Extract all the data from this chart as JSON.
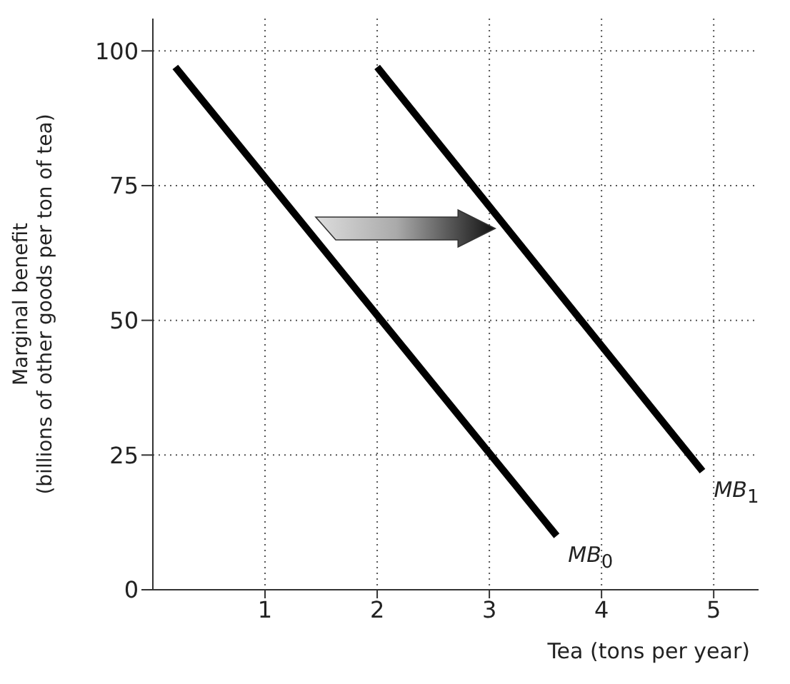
{
  "chart_data": {
    "type": "line",
    "xlabel": "Tea (tons per year)",
    "ylabel": "Marginal benefit\n(billions of other goods per ton of tea)",
    "series": [
      {
        "name": "MB$_{0}$",
        "color": "#000000",
        "x": [
          0.2,
          3.6
        ],
        "values": [
          97,
          10
        ]
      },
      {
        "name": "MB$_{1}$",
        "color": "#000000",
        "x": [
          2,
          4.9
        ],
        "values": [
          97,
          22
        ]
      }
    ],
    "xlim": [
      0,
      5.4
    ],
    "xticks": [
      1,
      2,
      3,
      4,
      5
    ],
    "ylim": [
      0,
      106
    ],
    "yticks": [
      0,
      25,
      50,
      75,
      100
    ],
    "grid": true,
    "marker": "none",
    "line_style": "solid",
    "legend": false
  }
}
